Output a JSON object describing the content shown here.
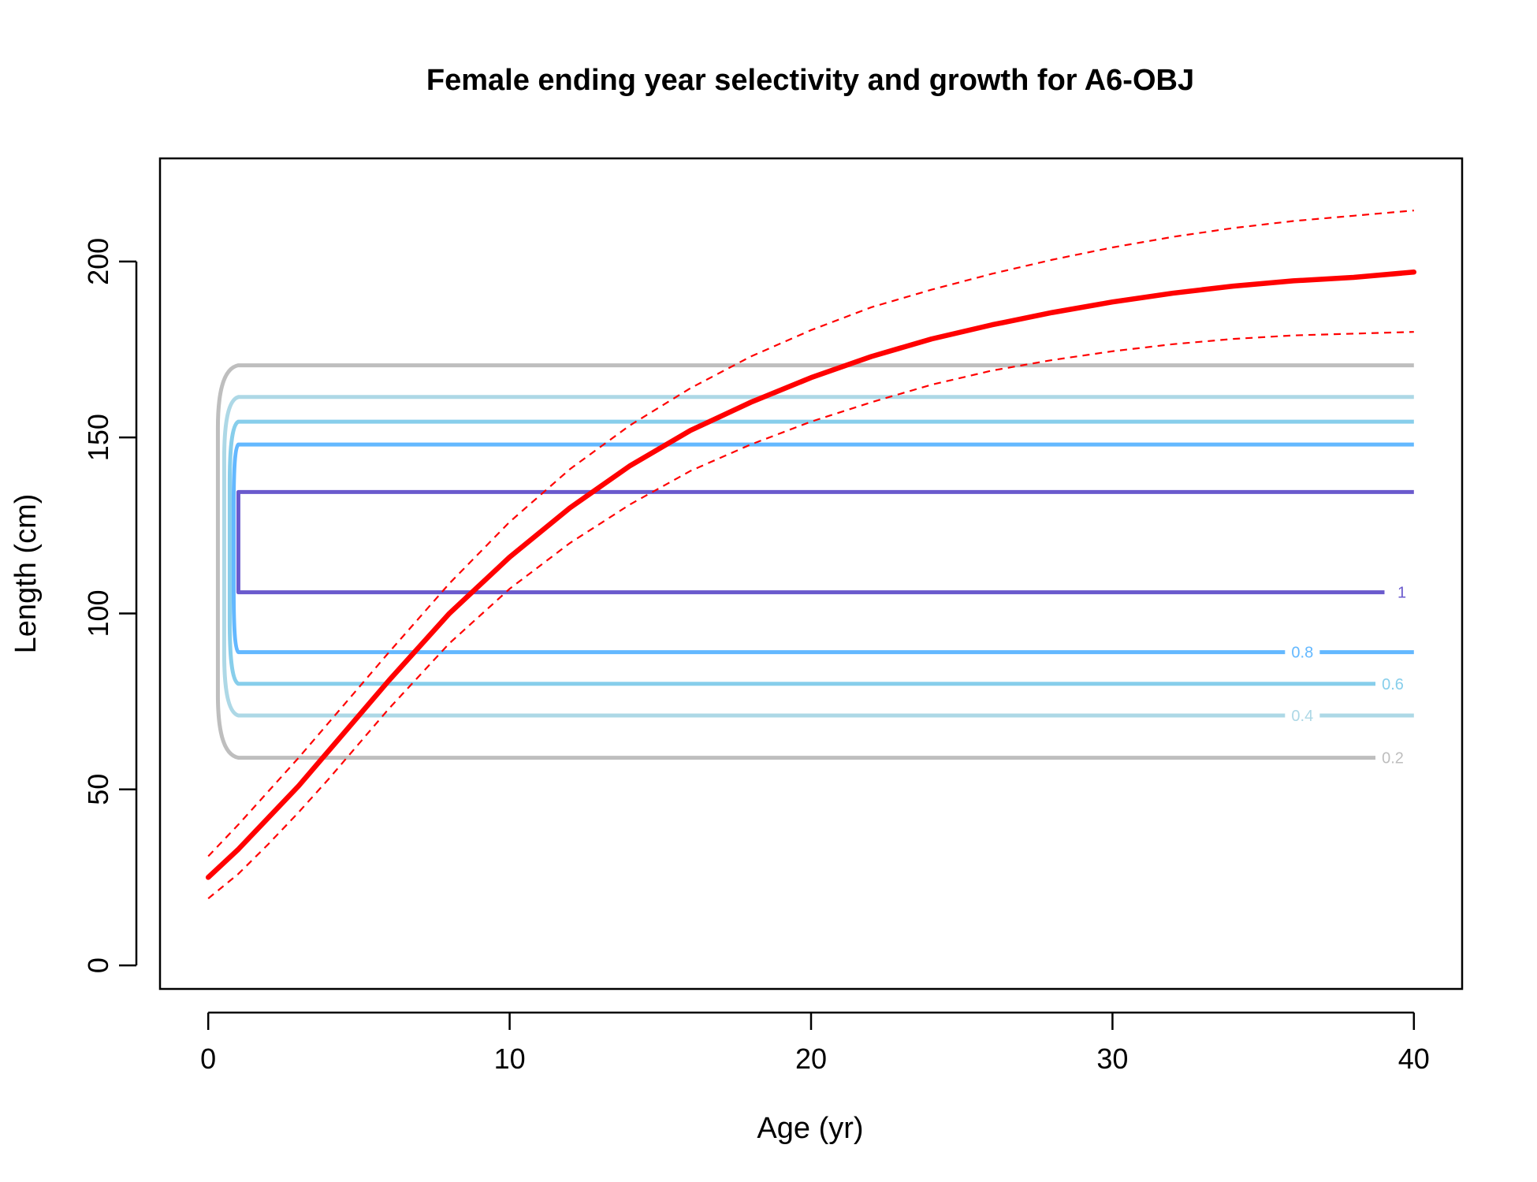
{
  "chart_data": {
    "type": "line",
    "title": "Female ending year selectivity and growth for A6-OBJ",
    "xlabel": "Age (yr)",
    "ylabel": "Length (cm)",
    "xlim": [
      -1.6,
      41.6
    ],
    "ylim": [
      -6.7,
      229.3
    ],
    "x_ticks": [
      0,
      10,
      20,
      30,
      40
    ],
    "y_ticks": [
      0,
      50,
      100,
      150,
      200
    ],
    "grid": false,
    "colors": {
      "growth": "#ff0000",
      "contour_0.2": "#bebebe",
      "contour_0.4": "#add8e6",
      "contour_0.6": "#87ceeb",
      "contour_0.8": "#63b8ff",
      "contour_1": "#6a5acd"
    },
    "growth": {
      "x": [
        0,
        1,
        2,
        3,
        4,
        5,
        6,
        8,
        10,
        12,
        14,
        16,
        18,
        20,
        22,
        24,
        26,
        28,
        30,
        32,
        34,
        36,
        38,
        40
      ],
      "mean": [
        25,
        33,
        42,
        51,
        61,
        71,
        81,
        100,
        116,
        130,
        142,
        152,
        160,
        167,
        173,
        178,
        182,
        185.5,
        188.5,
        191,
        193,
        194.5,
        195.5,
        197
      ],
      "upper": [
        31,
        40,
        49.5,
        59,
        69,
        79,
        89,
        108.5,
        126,
        141,
        153.5,
        164,
        173,
        180.5,
        187,
        192,
        196.5,
        200.5,
        204,
        207,
        209.5,
        211.5,
        213,
        214.5
      ],
      "lower": [
        19,
        26,
        34.5,
        43.5,
        53,
        63,
        73,
        91.5,
        107,
        120,
        131,
        140.5,
        148,
        154.5,
        160,
        165,
        169,
        172,
        174.5,
        176.5,
        178,
        179,
        179.5,
        180
      ]
    },
    "contours": [
      {
        "level": "0.2",
        "label": "0.2",
        "lower": 59,
        "upper": 170.5
      },
      {
        "level": "0.4",
        "label": "0.4",
        "lower": 71,
        "upper": 161.5
      },
      {
        "level": "0.6",
        "label": "0.6",
        "lower": 80,
        "upper": 154.5
      },
      {
        "level": "0.8",
        "label": "0.8",
        "lower": 89,
        "upper": 148
      },
      {
        "level": "1",
        "label": "1",
        "lower": 106,
        "upper": 134.5
      }
    ]
  }
}
